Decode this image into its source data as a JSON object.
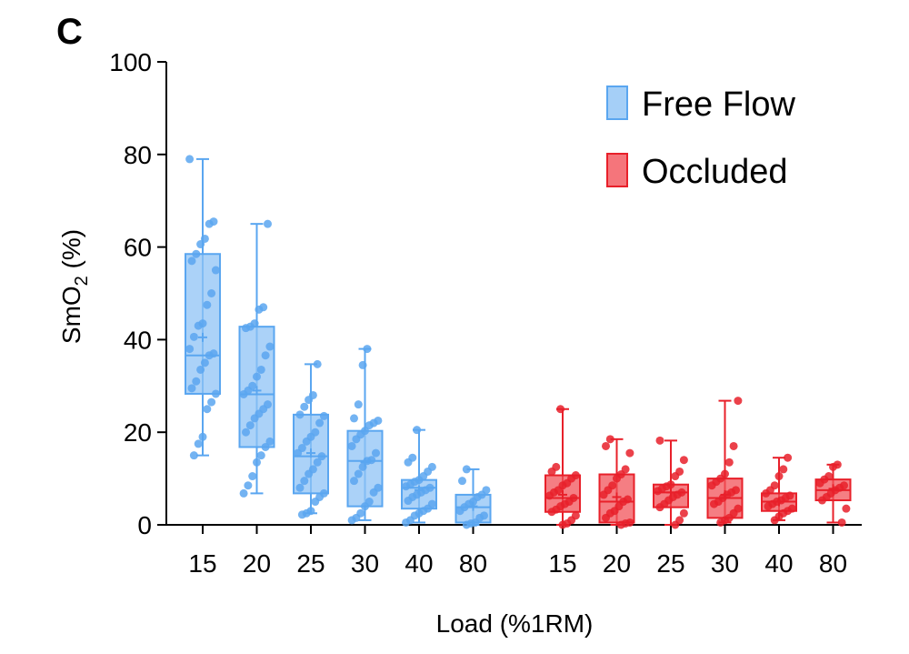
{
  "panel_label": "C",
  "chart_data": {
    "type": "box",
    "ylabel_main": "SmO",
    "ylabel_sub": "2",
    "ylabel_unit": " (%)",
    "xlabel": "Load (%1RM)",
    "ylim": [
      0,
      100
    ],
    "yticks": [
      0,
      20,
      40,
      60,
      80,
      100
    ],
    "legend_position": "top-right",
    "groups": [
      {
        "name": "Free Flow",
        "color": "#5aa6f0",
        "fill": "#8fc3f5",
        "boxes": [
          {
            "category": "15",
            "min": 15,
            "q1": 28.3,
            "median": 36.6,
            "mean": 40.5,
            "q3": 58.5,
            "max": 79,
            "points": [
              79,
              65.5,
              65,
              61.8,
              60.6,
              58.5,
              57,
              55,
              50,
              47.5,
              43.5,
              43,
              40.6,
              38,
              37,
              36.6,
              35,
              33.5,
              31,
              29.5,
              28.3,
              26.5,
              25,
              19,
              17.5,
              15
            ]
          },
          {
            "category": "20",
            "min": 6.8,
            "q1": 16.8,
            "median": 28.2,
            "mean": 29,
            "q3": 42.8,
            "max": 65,
            "points": [
              65,
              47,
              46.5,
              43.5,
              42.8,
              42.5,
              38.5,
              36.6,
              33.5,
              32,
              30,
              29,
              28.2,
              26,
              25,
              24,
              23,
              21.5,
              20,
              18,
              16.8,
              15,
              13.5,
              10.5,
              8.5,
              6.8
            ]
          },
          {
            "category": "25",
            "min": 2.5,
            "q1": 6.8,
            "median": 14.8,
            "mean": 15.5,
            "q3": 23.8,
            "max": 34.7,
            "points": [
              34.7,
              28,
              27,
              25.5,
              23.8,
              23.5,
              22,
              20,
              19,
              18,
              16.6,
              15.5,
              14.8,
              13.5,
              12,
              11,
              9.5,
              8,
              6.8,
              6,
              5,
              3,
              2.5,
              2.2
            ]
          },
          {
            "category": "30",
            "min": 1,
            "q1": 4,
            "median": 13.8,
            "mean": 13.5,
            "q3": 20.3,
            "max": 38,
            "points": [
              38,
              34.5,
              26,
              23,
              22.5,
              22,
              21.5,
              20.3,
              19.5,
              18.5,
              17,
              15.5,
              14,
              13.8,
              12.5,
              11,
              9.5,
              8,
              7,
              5,
              4,
              2.5,
              1.5,
              1
            ]
          },
          {
            "category": "40",
            "min": 0.5,
            "q1": 3.5,
            "median": 8,
            "mean": 7.5,
            "q3": 9.7,
            "max": 20.5,
            "points": [
              20.5,
              14.5,
              13.5,
              12.5,
              11.5,
              10.5,
              9.7,
              9.3,
              8.7,
              8.3,
              8,
              7.5,
              7,
              6.5,
              6,
              5.2,
              4.5,
              3.5,
              3,
              2.5,
              2,
              1,
              0.5
            ]
          },
          {
            "category": "80",
            "min": 0,
            "q1": 0.5,
            "median": 3.8,
            "mean": 4,
            "q3": 6.5,
            "max": 12,
            "points": [
              12,
              9.5,
              7.5,
              6.5,
              6,
              5,
              4.5,
              3.8,
              3,
              2,
              1.5,
              0.5,
              0.3,
              0
            ]
          }
        ]
      },
      {
        "name": "Occluded",
        "color": "#e8202a",
        "fill": "#f2535a",
        "boxes": [
          {
            "category": "15",
            "min": 0,
            "q1": 2.8,
            "median": 5.8,
            "mean": 6.5,
            "q3": 10.7,
            "max": 25,
            "points": [
              25,
              12.5,
              11.5,
              10.7,
              10,
              9,
              8.5,
              7.5,
              7,
              6.3,
              5.8,
              5,
              4.5,
              4,
              3.3,
              2.8,
              2,
              1,
              0.3,
              0
            ]
          },
          {
            "category": "20",
            "min": 0,
            "q1": 0.5,
            "median": 5,
            "mean": 6,
            "q3": 10.9,
            "max": 18.5,
            "points": [
              18.5,
              17,
              15.5,
              12,
              10.9,
              10,
              8.5,
              7.5,
              6.5,
              5.5,
              5,
              4,
              3,
              2.5,
              1.5,
              0.5,
              0.3,
              0
            ]
          },
          {
            "category": "25",
            "min": 0,
            "q1": 3.8,
            "median": 7,
            "mean": 7,
            "q3": 8.7,
            "max": 18.2,
            "points": [
              18.2,
              14,
              11.5,
              10.5,
              8.7,
              8.3,
              7.8,
              7.3,
              7,
              6.5,
              6,
              5.3,
              4.5,
              3.8,
              2.5,
              1,
              0
            ]
          },
          {
            "category": "30",
            "min": 0.5,
            "q1": 1.5,
            "median": 5.8,
            "mean": 6.5,
            "q3": 10,
            "max": 26.8,
            "points": [
              26.8,
              17,
              13.5,
              11,
              10,
              9.3,
              8.5,
              7.5,
              7,
              6.5,
              5.8,
              5,
              4.5,
              3.5,
              2.5,
              1.5,
              1,
              0.5
            ]
          },
          {
            "category": "40",
            "min": 1,
            "q1": 3,
            "median": 5,
            "mean": 5,
            "q3": 6.8,
            "max": 14.5,
            "points": [
              14.5,
              12,
              10.5,
              8.5,
              7.5,
              6.8,
              6.3,
              5.8,
              5.3,
              5,
              4.5,
              4,
              3.5,
              3,
              2.5,
              1.8,
              1
            ]
          },
          {
            "category": "80",
            "min": 0.5,
            "q1": 5.3,
            "median": 7.5,
            "mean": 7.8,
            "q3": 9.8,
            "max": 13,
            "points": [
              13,
              12.5,
              10.5,
              9.8,
              9,
              8.5,
              8,
              7.5,
              6.8,
              6,
              5.3,
              3.5,
              0.5
            ]
          }
        ]
      }
    ]
  }
}
